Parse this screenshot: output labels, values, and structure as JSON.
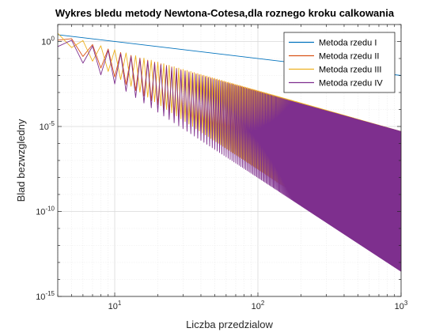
{
  "chart_data": {
    "type": "line",
    "title": "Wykres bledu metody Newtona-Cotesa,dla roznego kroku calkowania",
    "xlabel": "Liczba przedzialow",
    "ylabel": "Blad bezwzgledny",
    "xscale": "log",
    "yscale": "log",
    "xlim": [
      4,
      1000
    ],
    "ylim": [
      1e-15,
      10
    ],
    "x_ticks": [
      {
        "base": "10",
        "exp": "1"
      },
      {
        "base": "10",
        "exp": "2"
      },
      {
        "base": "10",
        "exp": "3"
      }
    ],
    "y_ticks": [
      {
        "base": "10",
        "exp": "0"
      },
      {
        "base": "10",
        "exp": "-5"
      },
      {
        "base": "10",
        "exp": "-10"
      },
      {
        "base": "10",
        "exp": "-15"
      }
    ],
    "grid": true,
    "minor_grid": true,
    "legend_position": "top-right",
    "series": [
      {
        "name": "Metoda rzedu I",
        "color": "#0072BD",
        "x_range": [
          4,
          1000
        ],
        "y_start": 2.5,
        "y_end": 0.01,
        "oscillation": "none"
      },
      {
        "name": "Metoda rzedu II",
        "color": "#D95319",
        "x_range": [
          4,
          1000
        ],
        "upper_start": 2.5,
        "upper_end": 5e-06,
        "lower_start": 1.2,
        "lower_end": 1e-13,
        "oscillation": "strong"
      },
      {
        "name": "Metoda rzedu III",
        "color": "#EDB120",
        "x_range": [
          4,
          1000
        ],
        "upper_start": 3.0,
        "upper_end": 5e-06,
        "lower_start": 1.5,
        "lower_end": 1e-13,
        "oscillation": "strong"
      },
      {
        "name": "Metoda rzedu IV",
        "color": "#7E2F8E",
        "x_range": [
          4,
          1000
        ],
        "upper_start": 2.0,
        "upper_end": 5e-06,
        "lower_start": 0.5,
        "lower_end": 3e-14,
        "oscillation": "strong"
      }
    ]
  }
}
